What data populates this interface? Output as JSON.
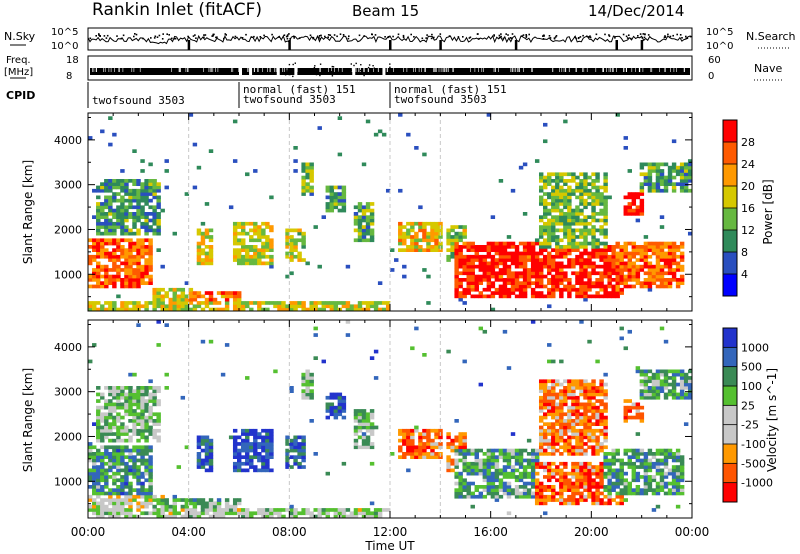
{
  "header": {
    "station": "Rankin Inlet (fitACF)",
    "beam": "Beam 15",
    "date": "14/Dec/2014"
  },
  "top_panels": {
    "nsky_label": "N.Sky",
    "nsearch_label": "N.Search",
    "nsky_ticks": [
      "10^5",
      "10^0"
    ],
    "nsearch_ticks": [
      "10^5",
      "10^0"
    ],
    "freq_label": "Freq.",
    "freq_unit": "[MHz]",
    "freq_ticks": [
      "18",
      "8"
    ],
    "nave_label": "Nave",
    "nave_ticks": [
      "60",
      "0"
    ],
    "cpid_label": "CPID",
    "cpid_segments": [
      {
        "start_h": 0.0,
        "end_h": 6.0,
        "lines": [
          "twofsound 3503"
        ]
      },
      {
        "start_h": 6.0,
        "end_h": 12.0,
        "lines": [
          "normal (fast) 151",
          "twofsound 3503"
        ]
      },
      {
        "start_h": 12.0,
        "end_h": 24.0,
        "lines": [
          "normal (fast) 151",
          "twofsound 3503"
        ]
      }
    ]
  },
  "chart_data": [
    {
      "type": "heatmap",
      "panel": "power",
      "ylabel": "Slant Range [km]",
      "yticks": [
        1000,
        2000,
        3000,
        4000
      ],
      "ylim": [
        180,
        4600
      ],
      "xlim": [
        0,
        24
      ],
      "colorbar_label": "Power [dB]",
      "colorbar_ticks": [
        "28",
        "24",
        "20",
        "16",
        "12",
        "8",
        "4"
      ],
      "colors": [
        "#0000ff",
        "#2a4fbf",
        "#2f8a5a",
        "#66b840",
        "#d6c800",
        "#ff9900",
        "#ff5a00",
        "#ff0000"
      ],
      "patches": [
        {
          "t0": 0.0,
          "t1": 2.6,
          "r0": 700,
          "r1": 1800,
          "level": 0.8
        },
        {
          "t0": 0.3,
          "t1": 2.9,
          "r0": 1900,
          "r1": 3100,
          "level": 0.35
        },
        {
          "t0": 2.6,
          "t1": 4.3,
          "r0": 300,
          "r1": 700,
          "level": 0.55
        },
        {
          "t0": 4.0,
          "t1": 6.1,
          "r0": 250,
          "r1": 650,
          "level": 0.75
        },
        {
          "t0": 4.4,
          "t1": 5.0,
          "r0": 1200,
          "r1": 2000,
          "level": 0.55
        },
        {
          "t0": 5.8,
          "t1": 7.4,
          "r0": 1200,
          "r1": 2200,
          "level": 0.55
        },
        {
          "t0": 7.9,
          "t1": 8.6,
          "r0": 1300,
          "r1": 2000,
          "level": 0.5
        },
        {
          "t0": 8.5,
          "t1": 9.0,
          "r0": 2800,
          "r1": 3500,
          "level": 0.45
        },
        {
          "t0": 9.5,
          "t1": 10.2,
          "r0": 2400,
          "r1": 3000,
          "level": 0.35
        },
        {
          "t0": 10.5,
          "t1": 11.3,
          "r0": 1700,
          "r1": 2600,
          "level": 0.4
        },
        {
          "t0": 12.4,
          "t1": 14.0,
          "r0": 1500,
          "r1": 2200,
          "level": 0.6
        },
        {
          "t0": 14.2,
          "t1": 15.0,
          "r0": 1200,
          "r1": 2100,
          "level": 0.5
        },
        {
          "t0": 14.6,
          "t1": 21.2,
          "r0": 500,
          "r1": 1700,
          "level": 0.92
        },
        {
          "t0": 18.0,
          "t1": 20.6,
          "r0": 1600,
          "r1": 3300,
          "level": 0.45
        },
        {
          "t0": 21.0,
          "t1": 23.6,
          "r0": 700,
          "r1": 1700,
          "level": 0.8
        },
        {
          "t0": 21.3,
          "t1": 22.0,
          "r0": 2300,
          "r1": 2800,
          "level": 0.95
        },
        {
          "t0": 22.0,
          "t1": 24.0,
          "r0": 2800,
          "r1": 3500,
          "level": 0.35
        },
        {
          "t0": 0.0,
          "t1": 12.0,
          "r0": 200,
          "r1": 400,
          "level": 0.55
        }
      ]
    },
    {
      "type": "heatmap",
      "panel": "velocity",
      "ylabel": "Slant Range [km]",
      "yticks": [
        1000,
        2000,
        3000,
        4000
      ],
      "ylim": [
        180,
        4600
      ],
      "xlim": [
        0,
        24
      ],
      "colorbar_label": "Velocity [m s^-1]",
      "colorbar_ticks": [
        "1000",
        "500",
        "100",
        "25",
        "-25",
        "-100",
        "-500",
        "-1000"
      ],
      "colors": [
        "#ff0000",
        "#ff5500",
        "#ff9900",
        "#c8c8c8",
        "#c8c8c8",
        "#55c030",
        "#3a8a55",
        "#3366bb",
        "#2233cc"
      ],
      "patches": [
        {
          "t0": 0.0,
          "t1": 2.6,
          "r0": 700,
          "r1": 1800,
          "level": 0.72
        },
        {
          "t0": 0.3,
          "t1": 2.9,
          "r0": 1900,
          "r1": 3100,
          "level": 0.6
        },
        {
          "t0": 0.0,
          "t1": 3.0,
          "r0": 400,
          "r1": 700,
          "level": 0.45
        },
        {
          "t0": 2.6,
          "t1": 6.0,
          "r0": 250,
          "r1": 650,
          "level": 0.64
        },
        {
          "t0": 4.4,
          "t1": 5.0,
          "r0": 1200,
          "r1": 2000,
          "level": 0.9
        },
        {
          "t0": 5.8,
          "t1": 7.4,
          "r0": 1200,
          "r1": 2200,
          "level": 0.92
        },
        {
          "t0": 7.9,
          "t1": 8.6,
          "r0": 1300,
          "r1": 2000,
          "level": 0.85
        },
        {
          "t0": 8.5,
          "t1": 9.0,
          "r0": 2800,
          "r1": 3500,
          "level": 0.6
        },
        {
          "t0": 9.5,
          "t1": 10.2,
          "r0": 2400,
          "r1": 3000,
          "level": 0.88
        },
        {
          "t0": 10.5,
          "t1": 11.3,
          "r0": 1700,
          "r1": 2600,
          "level": 0.62
        },
        {
          "t0": 12.4,
          "t1": 14.0,
          "r0": 1500,
          "r1": 2200,
          "level": 0.22
        },
        {
          "t0": 14.2,
          "t1": 15.0,
          "r0": 1200,
          "r1": 2100,
          "level": 0.22
        },
        {
          "t0": 14.6,
          "t1": 18.0,
          "r0": 600,
          "r1": 1700,
          "level": 0.68
        },
        {
          "t0": 17.8,
          "t1": 21.2,
          "r0": 500,
          "r1": 1400,
          "level": 0.18
        },
        {
          "t0": 18.0,
          "t1": 20.6,
          "r0": 1600,
          "r1": 3300,
          "level": 0.22
        },
        {
          "t0": 20.5,
          "t1": 23.6,
          "r0": 700,
          "r1": 1700,
          "level": 0.7
        },
        {
          "t0": 21.3,
          "t1": 22.0,
          "r0": 2300,
          "r1": 2800,
          "level": 0.2
        },
        {
          "t0": 22.0,
          "t1": 24.0,
          "r0": 2800,
          "r1": 3500,
          "level": 0.68
        },
        {
          "t0": 0.0,
          "t1": 12.0,
          "r0": 200,
          "r1": 400,
          "level": 0.5
        }
      ]
    }
  ],
  "x_axis": {
    "label": "Time UT",
    "ticks": [
      "00:00",
      "04:00",
      "08:00",
      "12:00",
      "16:00",
      "20:00",
      "00:00"
    ],
    "tick_hours": [
      0,
      4,
      8,
      12,
      16,
      20,
      24
    ]
  }
}
